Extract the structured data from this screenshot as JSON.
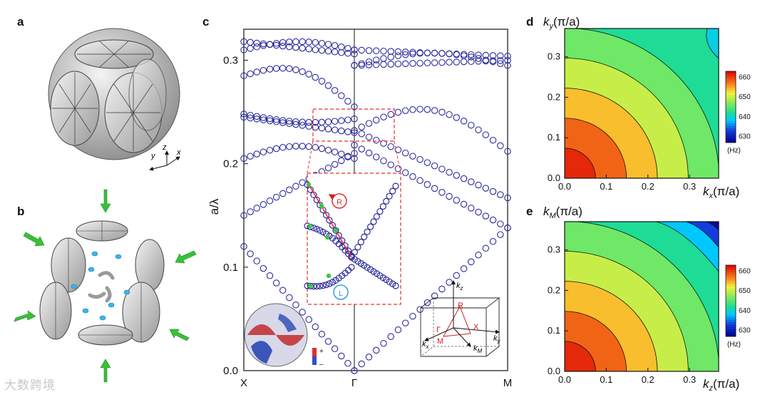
{
  "figure": {
    "panels": {
      "a": {
        "label": "a",
        "axes": {
          "y": "y",
          "z": "z",
          "x": "x"
        }
      },
      "b": {
        "label": "b"
      },
      "c": {
        "label": "c"
      },
      "d": {
        "label": "d"
      },
      "e": {
        "label": "e"
      }
    },
    "watermark": "大数跨境",
    "colors": {
      "band_marker": "#2b2b9c",
      "highlight": "#e53030",
      "fit": "#3cc83c",
      "right_circ": "#e03030",
      "left_circ": "#30a0d8"
    }
  },
  "chart_data": [
    {
      "id": "c",
      "type": "scatter",
      "title": "",
      "xlabel": "",
      "ylabel": "a/λ",
      "xticks": [
        "X",
        "Γ",
        "M"
      ],
      "ylim": [
        0,
        0.33
      ],
      "yticks": [
        "0.0",
        "0.1",
        "0.2",
        "0.3"
      ],
      "ytick_values": [
        0,
        0.1,
        0.2,
        0.3
      ],
      "series_description": "band structure (circles)",
      "inset_labels": {
        "right": "R",
        "left": "L"
      },
      "legend_signs": {
        "plus": "+",
        "minus": "–"
      },
      "bz_labels": {
        "kz": "k",
        "kz_sub": "z",
        "kx": "k",
        "kx_sub": "x",
        "ky": "k",
        "ky_sub": "y",
        "kM": "k",
        "kM_sub": "M",
        "R": "R",
        "X": "X",
        "M": "M",
        "Gamma": "Γ"
      }
    },
    {
      "id": "d",
      "type": "heatmap",
      "xlabel_main": "k",
      "xlabel_sub": "x",
      "xlabel_unit": "(π/a)",
      "ylabel_main": "k",
      "ylabel_sub": "y",
      "ylabel_unit": "(π/a)",
      "xlim": [
        0,
        0.37
      ],
      "ylim": [
        0,
        0.37
      ],
      "xticks": [
        "0.0",
        "0.1",
        "0.2",
        "0.3"
      ],
      "yticks": [
        "0.0",
        "0.1",
        "0.2",
        "0.3"
      ],
      "colorbar": {
        "ticks": [
          "660",
          "650",
          "640",
          "630"
        ],
        "unit": "(Hz)",
        "range": [
          627,
          663
        ]
      }
    },
    {
      "id": "e",
      "type": "heatmap",
      "xlabel_main": "k",
      "xlabel_sub": "z",
      "xlabel_unit": "(π/a)",
      "ylabel_main": "k",
      "ylabel_sub": "M",
      "ylabel_unit": "(π/a)",
      "xlim": [
        0,
        0.37
      ],
      "ylim": [
        0,
        0.37
      ],
      "xticks": [
        "0.0",
        "0.1",
        "0.2",
        "0.3"
      ],
      "yticks": [
        "0.0",
        "0.1",
        "0.2",
        "0.3"
      ],
      "colorbar": {
        "ticks": [
          "660",
          "650",
          "640",
          "630"
        ],
        "unit": "(Hz)",
        "range": [
          627,
          663
        ]
      }
    }
  ]
}
